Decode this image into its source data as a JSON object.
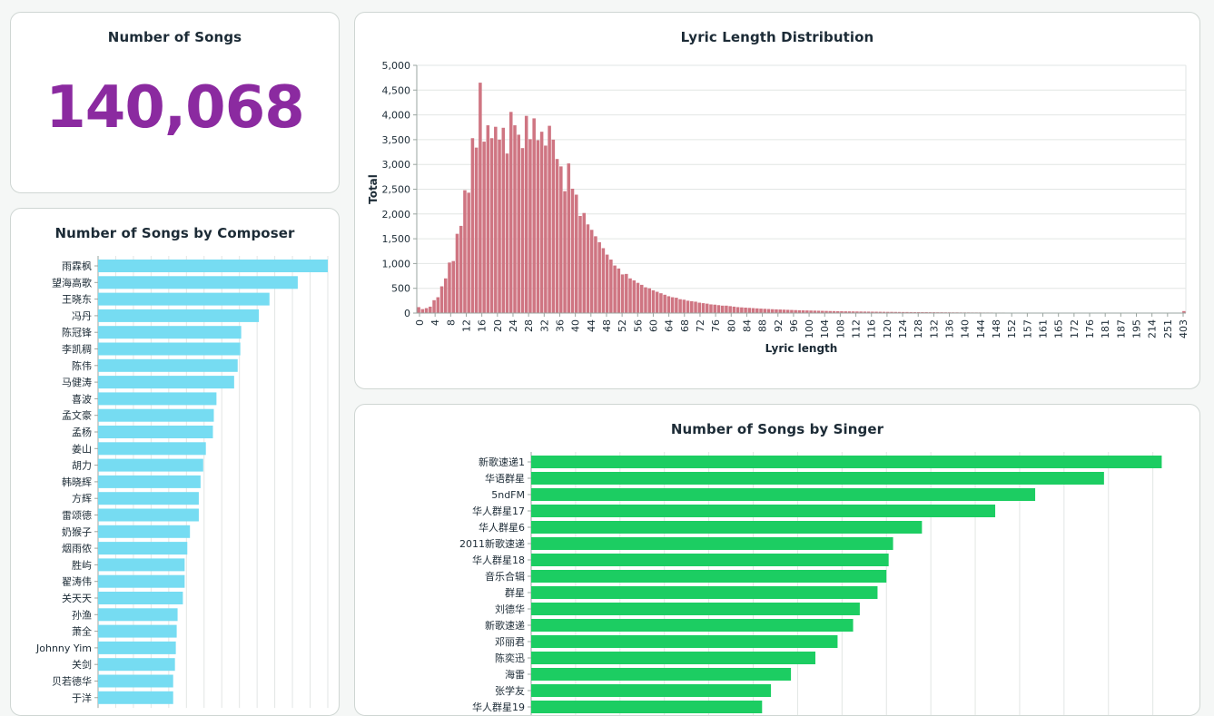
{
  "kpi": {
    "title": "Number of Songs",
    "value": "140,068"
  },
  "chart_data": [
    {
      "id": "composer",
      "type": "bar",
      "orientation": "horizontal",
      "title": "Number of Songs by Composer",
      "xlabel": "",
      "ylabel": "",
      "color": "#76dcf2",
      "xlim": [
        0,
        1300
      ],
      "categories": [
        "雨霖枫",
        "望海高歌",
        "王晓东",
        "冯丹",
        "陈冠锋",
        "李凯稠",
        "陈伟",
        "马健涛",
        "喜波",
        "孟文豪",
        "孟杨",
        "姜山",
        "胡力",
        "韩晓辉",
        "方辉",
        "雷颂德",
        "奶猴子",
        "烟雨侬",
        "胜屿",
        "翟涛伟",
        "关天天",
        "孙渔",
        "萧全",
        "Johnny Yim",
        "关剑",
        "贝若德华",
        "于洋"
      ],
      "values": [
        1300,
        1130,
        970,
        910,
        810,
        805,
        790,
        770,
        670,
        655,
        650,
        610,
        595,
        580,
        570,
        570,
        520,
        505,
        490,
        490,
        480,
        450,
        445,
        440,
        435,
        425,
        425
      ]
    },
    {
      "id": "lyric",
      "type": "bar",
      "title": "Lyric Length Distribution",
      "xlabel": "Lyric length",
      "ylabel": "Total",
      "color": "#cf7582",
      "ylim": [
        0,
        5000
      ],
      "yticks": [
        "0",
        "500",
        "1,000",
        "1,500",
        "2,000",
        "2,500",
        "3,000",
        "3,500",
        "4,000",
        "4,500",
        "5,000"
      ],
      "xticks": [
        "0",
        "4",
        "8",
        "12",
        "16",
        "20",
        "24",
        "28",
        "32",
        "36",
        "40",
        "44",
        "48",
        "52",
        "56",
        "60",
        "64",
        "68",
        "72",
        "76",
        "80",
        "84",
        "88",
        "92",
        "96",
        "100",
        "104",
        "108",
        "112",
        "116",
        "120",
        "124",
        "128",
        "132",
        "136",
        "140",
        "144",
        "148",
        "152",
        "157",
        "161",
        "165",
        "172",
        "176",
        "181",
        "187",
        "195",
        "214",
        "251",
        "403"
      ],
      "values": [
        120,
        80,
        100,
        130,
        260,
        320,
        540,
        700,
        1020,
        1050,
        1600,
        1760,
        2480,
        2430,
        3530,
        3340,
        4650,
        3460,
        3790,
        3530,
        3760,
        3500,
        3740,
        3220,
        4060,
        3790,
        3600,
        3330,
        3980,
        3510,
        3930,
        3490,
        3660,
        3380,
        3780,
        3500,
        3110,
        2960,
        2460,
        3020,
        2510,
        2390,
        1960,
        2020,
        1790,
        1680,
        1550,
        1430,
        1310,
        1180,
        1080,
        960,
        900,
        780,
        790,
        700,
        660,
        610,
        570,
        520,
        500,
        460,
        430,
        400,
        370,
        340,
        320,
        310,
        280,
        270,
        250,
        240,
        230,
        210,
        200,
        190,
        175,
        170,
        160,
        150,
        150,
        140,
        130,
        120,
        115,
        110,
        105,
        100,
        95,
        90,
        86,
        82,
        78,
        75,
        72,
        69,
        66,
        63,
        60,
        57,
        55,
        53,
        51,
        49,
        47,
        45,
        43,
        41,
        40,
        38,
        37,
        35,
        34,
        33,
        32,
        31,
        30,
        29,
        28,
        27,
        26,
        25,
        24,
        24,
        23,
        22,
        21,
        21,
        20,
        19,
        19,
        18,
        18,
        17,
        17,
        16,
        16,
        15,
        15,
        14,
        14,
        13,
        13,
        13,
        12,
        12,
        12,
        11,
        11,
        11,
        10,
        10,
        10,
        9,
        9,
        9,
        9,
        8,
        8,
        8,
        8,
        7,
        7,
        7,
        7,
        7,
        6,
        6,
        6,
        6,
        6,
        6,
        5,
        5,
        5,
        5,
        5,
        5,
        5,
        4,
        4,
        4,
        4,
        4,
        4,
        4,
        4,
        4,
        3,
        3,
        3,
        3,
        3,
        3,
        3,
        3,
        3,
        3,
        3,
        40
      ]
    },
    {
      "id": "singer",
      "type": "bar",
      "orientation": "horizontal",
      "title": "Number of Songs by Singer",
      "xlabel": "",
      "ylabel": "",
      "color": "#1ccd62",
      "xlim": [
        0,
        1460
      ],
      "categories": [
        "新歌速递1",
        "华语群星",
        "5ndFM",
        "华人群星17",
        "华人群星6",
        "2011新歌速递",
        "华人群星18",
        "音乐合辑",
        "群星",
        "刘德华",
        "新歌速递",
        "邓丽君",
        "陈奕迅",
        "海雷",
        "张学友",
        "华人群星19"
      ],
      "values": [
        1420,
        1290,
        1135,
        1045,
        880,
        815,
        805,
        800,
        780,
        740,
        725,
        690,
        640,
        585,
        540,
        520
      ]
    }
  ]
}
